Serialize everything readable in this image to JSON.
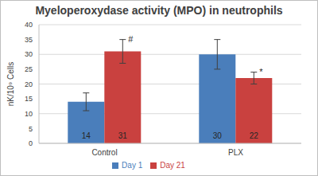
{
  "chart_data": {
    "type": "bar",
    "title": "Myeloperoxydase activity (MPO) in neutrophils",
    "ylabel": "nK/10⁹ Cells",
    "categories": [
      "Control",
      "PLX"
    ],
    "series": [
      {
        "name": "Day 1",
        "color": "#4a7ebb",
        "values": [
          14,
          30
        ],
        "error": [
          3,
          5
        ]
      },
      {
        "name": "Day 21",
        "color": "#c9413f",
        "values": [
          31,
          22
        ],
        "error": [
          4,
          2
        ],
        "annotations": [
          "#",
          "*"
        ]
      }
    ],
    "ylim": [
      0,
      40
    ],
    "yticks": [
      0,
      5,
      10,
      15,
      20,
      25,
      30,
      35,
      40
    ],
    "grid": true,
    "legend": "bottom",
    "data_labels": true
  }
}
